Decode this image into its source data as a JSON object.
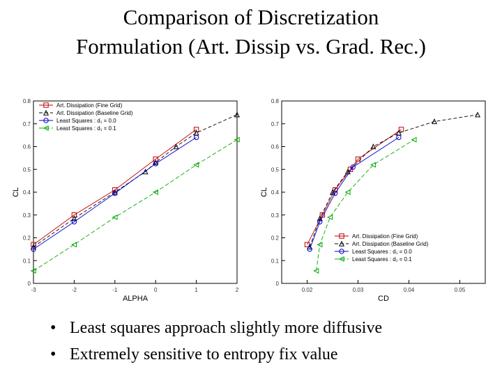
{
  "slide": {
    "title_line1": "Comparison of Discretization",
    "title_line2": "Formulation (Art. Dissip vs. Grad. Rec.)",
    "bullets": [
      "Least squares approach slightly more diffusive",
      "Extremely sensitive to entropy fix value"
    ]
  },
  "chart_data": [
    {
      "type": "line",
      "xlabel": "ALPHA",
      "ylabel": "CL",
      "xlim": [
        -3,
        2
      ],
      "ylim": [
        0,
        0.8
      ],
      "xticks": [
        "-3",
        "-2",
        "-1",
        "0",
        "1",
        "2"
      ],
      "yticks": [
        "0",
        "0.1",
        "0.2",
        "0.3",
        "0.4",
        "0.5",
        "0.6",
        "0.7",
        "0.8"
      ],
      "grid": false,
      "legend_position": "top-left",
      "series": [
        {
          "name": "Art. Dissipation (Fine Grid)",
          "color": "#c00000",
          "marker": "square",
          "dash": "",
          "x": [
            -3,
            -2,
            -1,
            0,
            1
          ],
          "y": [
            0.17,
            0.3,
            0.41,
            0.545,
            0.675
          ]
        },
        {
          "name": "Art. Dissipation (Baseline Grid)",
          "color": "#000000",
          "marker": "triangle",
          "dash": "5,3",
          "x": [
            -3,
            -2,
            -1,
            -0.25,
            0,
            0.5,
            1,
            2
          ],
          "y": [
            0.16,
            0.285,
            0.4,
            0.49,
            0.53,
            0.6,
            0.66,
            0.74
          ]
        },
        {
          "name": "Least Squares : d₁ = 0.0",
          "color": "#0000cc",
          "marker": "circle",
          "dash": "",
          "x": [
            -3,
            -2,
            -1,
            0,
            1
          ],
          "y": [
            0.15,
            0.27,
            0.395,
            0.525,
            0.64
          ]
        },
        {
          "name": "Least Squares : d₁ = 0.1",
          "color": "#00aa00",
          "marker": "triangle-left",
          "dash": "6,3",
          "x": [
            -3,
            -2,
            -1,
            0,
            1,
            2
          ],
          "y": [
            0.055,
            0.17,
            0.29,
            0.4,
            0.52,
            0.63
          ]
        }
      ]
    },
    {
      "type": "line",
      "xlabel": "CD",
      "ylabel": "CL",
      "xlim": [
        0.015,
        0.055
      ],
      "ylim": [
        0,
        0.8
      ],
      "xticks": [
        "0.02",
        "0.03",
        "0.04",
        "0.05"
      ],
      "yticks": [
        "0",
        "0.1",
        "0.2",
        "0.3",
        "0.4",
        "0.5",
        "0.6",
        "0.7",
        "0.8"
      ],
      "grid": false,
      "legend_position": "bottom-right",
      "series": [
        {
          "name": "Art. Dissipation (Fine Grid)",
          "color": "#c00000",
          "marker": "square",
          "dash": "",
          "x": [
            0.02,
            0.023,
            0.0255,
            0.0285,
            0.03,
            0.0385
          ],
          "y": [
            0.17,
            0.3,
            0.41,
            0.5,
            0.545,
            0.675
          ]
        },
        {
          "name": "Art. Dissipation (Baseline Grid)",
          "color": "#000000",
          "marker": "triangle",
          "dash": "5,3",
          "x": [
            0.0205,
            0.0225,
            0.025,
            0.028,
            0.033,
            0.038,
            0.045,
            0.0535
          ],
          "y": [
            0.16,
            0.285,
            0.4,
            0.49,
            0.6,
            0.66,
            0.71,
            0.74
          ]
        },
        {
          "name": "Least Squares : d₁ = 0.0",
          "color": "#0000cc",
          "marker": "circle",
          "dash": "",
          "x": [
            0.0205,
            0.0225,
            0.0255,
            0.029,
            0.038
          ],
          "y": [
            0.15,
            0.27,
            0.395,
            0.51,
            0.64
          ]
        },
        {
          "name": "Least Squares : d₁ = 0.1",
          "color": "#00aa00",
          "marker": "triangle-left",
          "dash": "6,3",
          "x": [
            0.0218,
            0.0225,
            0.0245,
            0.028,
            0.033,
            0.041
          ],
          "y": [
            0.055,
            0.17,
            0.29,
            0.4,
            0.52,
            0.63
          ]
        }
      ]
    }
  ]
}
